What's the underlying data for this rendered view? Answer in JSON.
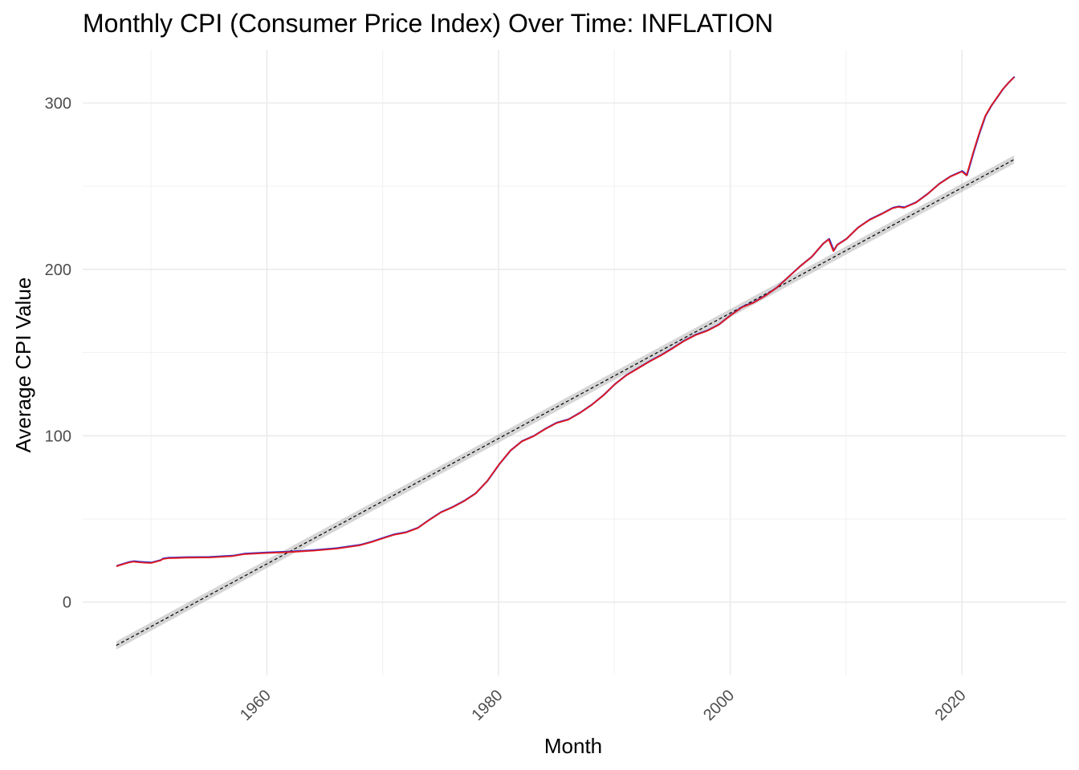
{
  "chart_data": {
    "type": "line",
    "title": "Monthly CPI (Consumer Price Index) Over Time: INFLATION",
    "xlabel": "Month",
    "ylabel": "Average CPI Value",
    "xlim": [
      1944.1,
      2029.0
    ],
    "ylim": [
      -44,
      332
    ],
    "x_ticks": [
      1960,
      1980,
      2000,
      2020
    ],
    "x_tick_labels": [
      "1960",
      "1980",
      "2000",
      "2020"
    ],
    "y_ticks": [
      0,
      100,
      200,
      300
    ],
    "y_tick_labels": [
      "0",
      "100",
      "200",
      "300"
    ],
    "grid": true,
    "legend": "none",
    "x": [
      1947.0,
      1948.0,
      1948.5,
      1949.0,
      1949.5,
      1950.0,
      1950.8,
      1951.0,
      1951.5,
      1952.0,
      1953.0,
      1955.0,
      1957.0,
      1958.0,
      1960.0,
      1962.0,
      1964.0,
      1966.0,
      1968.0,
      1969.0,
      1970.0,
      1971.0,
      1972.0,
      1973.0,
      1974.0,
      1975.0,
      1976.0,
      1977.0,
      1978.0,
      1979.0,
      1980.0,
      1981.0,
      1982.0,
      1983.0,
      1984.0,
      1985.0,
      1986.0,
      1987.0,
      1988.0,
      1989.0,
      1990.0,
      1991.0,
      1992.0,
      1993.0,
      1994.0,
      1995.0,
      1996.0,
      1997.0,
      1998.0,
      1999.0,
      2000.0,
      2001.0,
      2002.0,
      2003.0,
      2004.0,
      2005.0,
      2006.0,
      2007.0,
      2008.0,
      2008.5,
      2008.9,
      2009.2,
      2010.0,
      2011.0,
      2012.0,
      2013.0,
      2014.0,
      2014.5,
      2015.0,
      2016.0,
      2017.0,
      2018.0,
      2019.0,
      2020.0,
      2020.4,
      2021.0,
      2021.5,
      2022.0,
      2022.5,
      2023.0,
      2023.5,
      2024.0,
      2024.5
    ],
    "series": [
      {
        "values": [
          21.5,
          23.7,
          24.3,
          23.9,
          23.7,
          23.5,
          25.0,
          25.9,
          26.4,
          26.5,
          26.7,
          26.8,
          27.6,
          28.8,
          29.5,
          30.1,
          30.9,
          32.1,
          34.1,
          36.0,
          38.3,
          40.5,
          41.8,
          44.4,
          49.3,
          53.8,
          56.9,
          60.6,
          65.2,
          72.6,
          82.4,
          90.9,
          96.5,
          99.6,
          103.9,
          107.6,
          109.6,
          113.6,
          118.3,
          124.0,
          130.7,
          136.2,
          140.3,
          144.5,
          148.2,
          152.4,
          156.9,
          160.5,
          163.0,
          166.6,
          172.2,
          177.1,
          179.9,
          184.0,
          188.9,
          195.3,
          201.6,
          207.3,
          215.3,
          218.0,
          211.0,
          214.5,
          218.1,
          224.9,
          229.6,
          233.0,
          236.7,
          237.5,
          237.0,
          240.0,
          245.1,
          251.1,
          255.7,
          258.8,
          256.4,
          270.9,
          282.0,
          292.0,
          298.0,
          303.0,
          308.0,
          312.0,
          315.5
        ],
        "color": "#e41a1c"
      }
    ],
    "trend_line": {
      "x": [
        1947.0,
        2024.5
      ],
      "values": [
        -26.0,
        266.0
      ],
      "band": 2.5,
      "color": "#000000"
    }
  }
}
